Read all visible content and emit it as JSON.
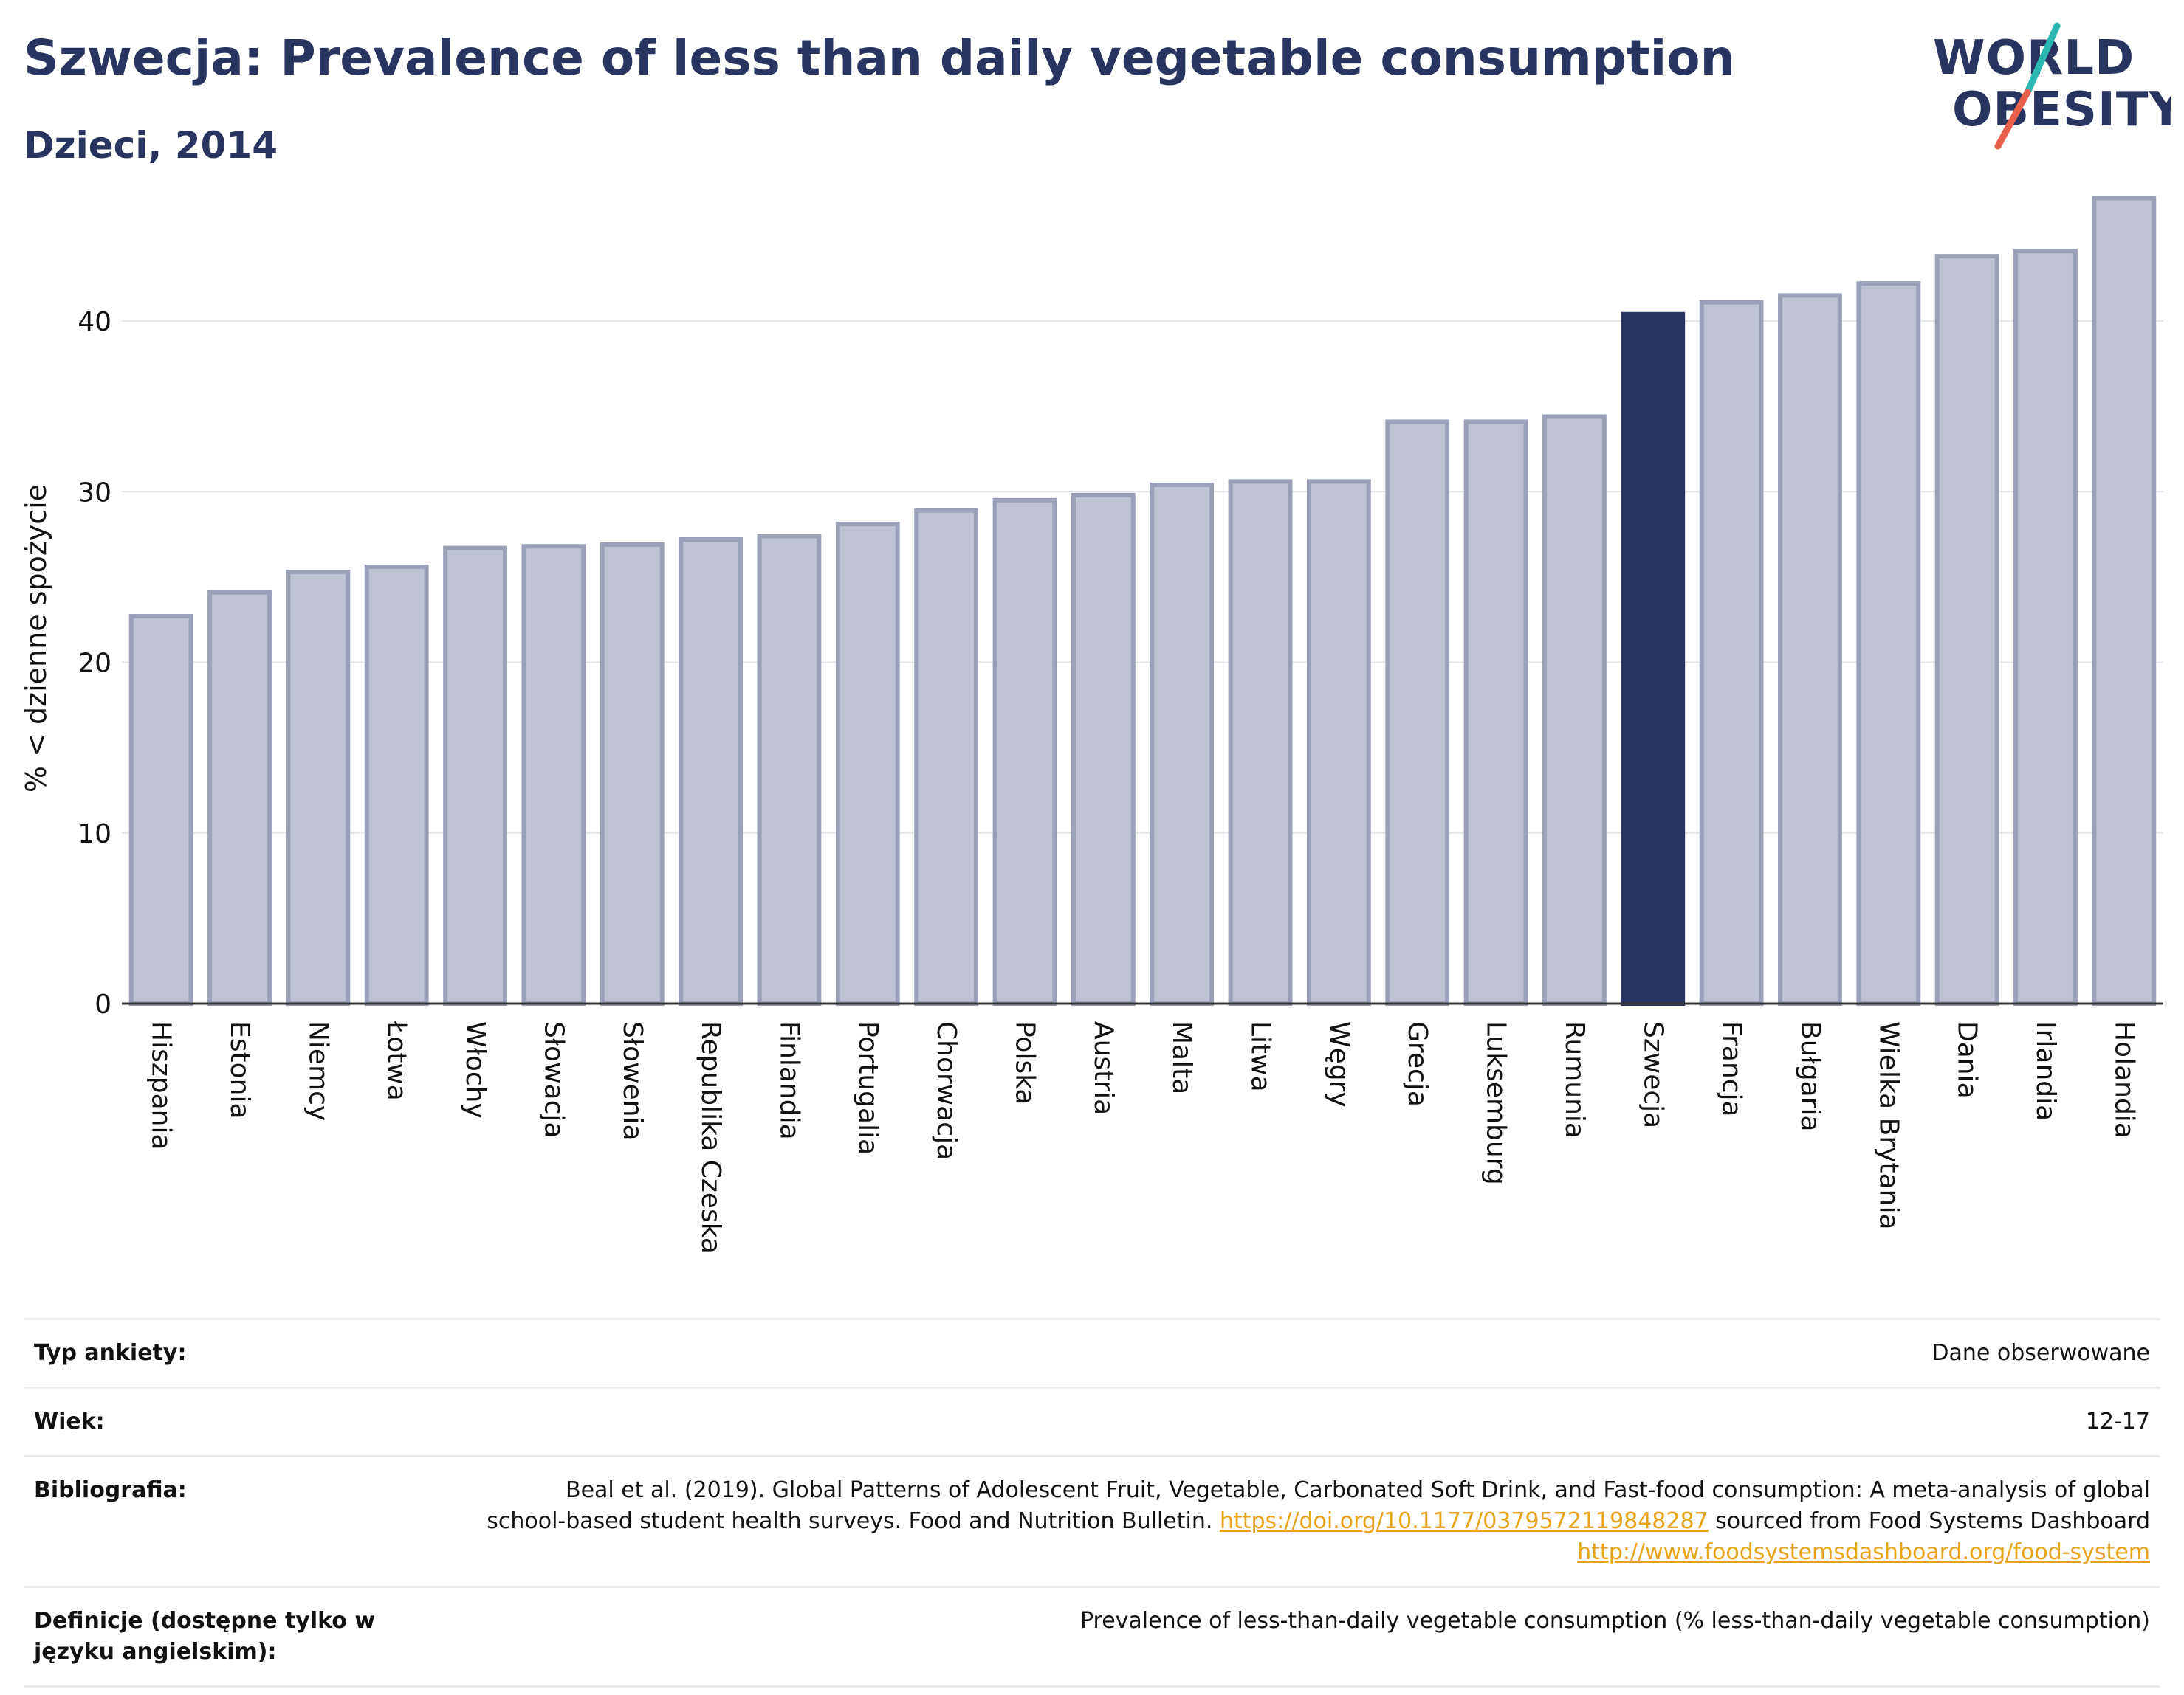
{
  "header": {
    "title": "Szwecja: Prevalence of less than daily vegetable consumption",
    "subtitle": "Dzieci, 2014",
    "logo_text_line1": "WORLD",
    "logo_text_line2": "OBESITY"
  },
  "colors": {
    "navy": "#2a3460",
    "bar_fill": "#bfc3d1",
    "bar_border": "#9aa0b8",
    "highlight": "#2a3460",
    "logo_teal": "#2bb8b3",
    "logo_red": "#e8604c",
    "link": "#e8a317"
  },
  "chart_data": {
    "type": "bar",
    "ylabel": "% < dzienne spożycie",
    "xlabel": "",
    "ylim": [
      0,
      48
    ],
    "yticks": [
      0,
      10,
      20,
      30,
      40
    ],
    "grid": true,
    "highlight_category": "Szwecja",
    "categories": [
      "Hiszpania",
      "Estonia",
      "Niemcy",
      "Łotwa",
      "Włochy",
      "Słowacja",
      "Słowenia",
      "Republika Czeska",
      "Finlandia",
      "Portugalia",
      "Chorwacja",
      "Polska",
      "Austria",
      "Malta",
      "Litwa",
      "Węgry",
      "Grecja",
      "Luksemburg",
      "Rumunia",
      "Szwecja",
      "Francja",
      "Bułgaria",
      "Wielka Brytania",
      "Dania",
      "Irlandia",
      "Holandia"
    ],
    "values": [
      22.7,
      24.1,
      25.3,
      25.6,
      26.7,
      26.8,
      26.9,
      27.2,
      27.4,
      28.1,
      28.9,
      29.5,
      29.8,
      30.4,
      30.6,
      30.6,
      34.1,
      34.1,
      34.4,
      40.4,
      41.1,
      41.5,
      42.2,
      43.8,
      44.1,
      47.2
    ]
  },
  "info": {
    "rows": [
      {
        "label": "Typ ankiety:",
        "value": "Dane obserwowane"
      },
      {
        "label": "Wiek:",
        "value": "12-17"
      }
    ],
    "bibliography_label": "Bibliografia:",
    "bibliography_text1": "Beal et al. (2019). Global Patterns of Adolescent Fruit, Vegetable, Carbonated Soft Drink, and Fast-food consumption: A meta-analysis of global school-based student health surveys. Food and Nutrition Bulletin.",
    "bibliography_link1": "https://doi.org/10.1177/0379572119848287",
    "bibliography_text2": "sourced from Food Systems Dashboard",
    "bibliography_link2": "http://www.foodsystemsdashboard.org/food-system",
    "definition_label": "Definicje (dostępne tylko w języku angielskim):",
    "definition_value": "Prevalence of less-than-daily vegetable consumption (% less-than-daily vegetable consumption)"
  }
}
